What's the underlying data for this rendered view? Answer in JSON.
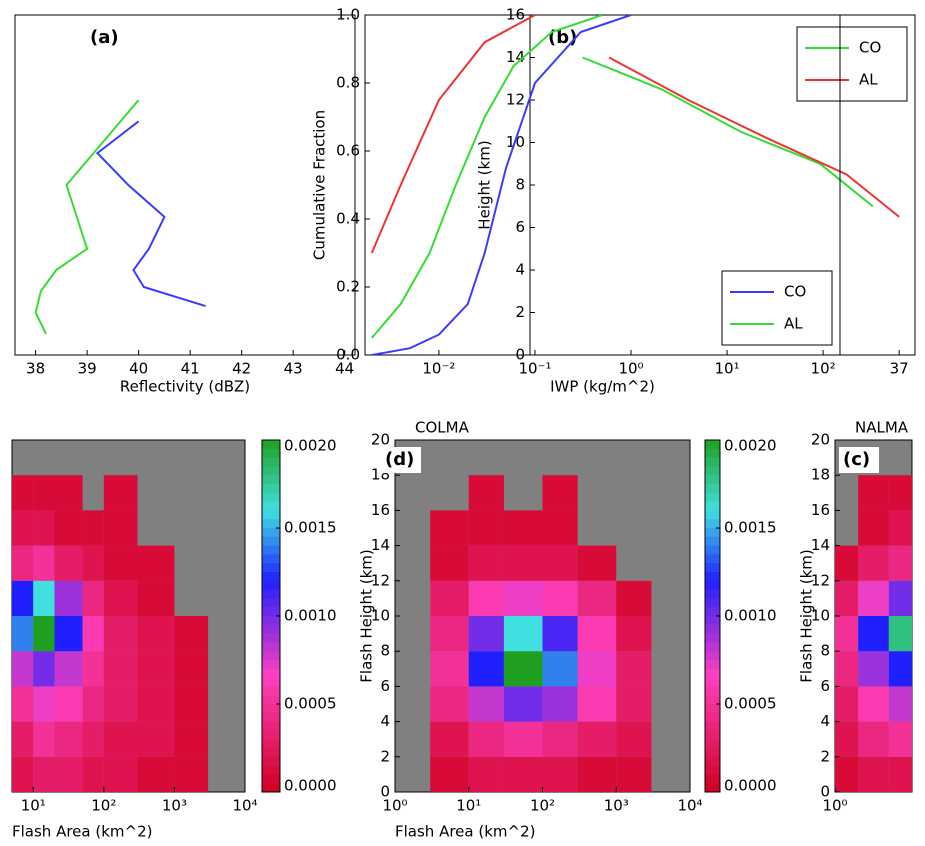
{
  "chart_data": [
    {
      "type": "line",
      "label": "(a)",
      "xlabel": "Reflectivity (dBZ)",
      "xlim": [
        37.6,
        44.2
      ],
      "xticks": [
        38,
        39,
        40,
        41,
        42,
        43,
        44
      ],
      "ylim": [
        0,
        16
      ],
      "series": [
        {
          "color": "#3b3bff",
          "x": [
            41.3,
            40.1,
            39.9,
            40.2,
            40.5,
            39.8,
            39.2,
            40.0
          ],
          "values": [
            2.3,
            3.2,
            4.0,
            5.0,
            6.5,
            8.0,
            9.5,
            11.0
          ]
        },
        {
          "color": "#33dd33",
          "x": [
            38.2,
            38.0,
            38.1,
            38.4,
            39.0,
            38.8,
            38.6,
            39.3,
            40.0
          ],
          "values": [
            1,
            2,
            3,
            4,
            5,
            6.5,
            8,
            10,
            12
          ]
        }
      ]
    },
    {
      "type": "line",
      "label": "(b)",
      "ylabel": "Height (km)",
      "xlim": [
        30,
        37.3
      ],
      "xticks": [
        37
      ],
      "ylim": [
        0,
        16
      ],
      "yticks": [
        0,
        2,
        4,
        6,
        8,
        10,
        12,
        14,
        16
      ],
      "legend": "upper right",
      "series": [
        {
          "name": "CO",
          "color": "#33dd33",
          "x": [
            31,
            32.5,
            34,
            35.5,
            36.5
          ],
          "values": [
            14,
            12.5,
            10.5,
            9,
            7
          ]
        },
        {
          "name": "AL",
          "color": "#ee3333",
          "x": [
            31.5,
            33,
            34.5,
            36,
            37
          ],
          "values": [
            14,
            12,
            10.2,
            8.5,
            6.5
          ]
        }
      ]
    },
    {
      "type": "line",
      "xlabel": "IWP (kg/m^2)",
      "ylabel": "Cumulative Fraction",
      "xlog": true,
      "xlim": [
        0.0017,
        150
      ],
      "xticks": [
        {
          "value": 0.01,
          "label": "10⁻²"
        },
        {
          "value": 0.1,
          "label": "10⁻¹"
        },
        {
          "value": 1,
          "label": "10⁰"
        },
        {
          "value": 10,
          "label": "10¹"
        },
        {
          "value": 100,
          "label": "10²"
        }
      ],
      "ylim": [
        0,
        1
      ],
      "yticks": [
        {
          "value": 0,
          "label": "0.0"
        },
        0.2,
        0.4,
        0.6,
        0.8,
        {
          "value": 1,
          "label": "1.0"
        }
      ],
      "legend": "lower right",
      "series": [
        {
          "name": "CO",
          "color": "#3b3bff",
          "x": [
            0.002,
            0.005,
            0.01,
            0.02,
            0.03,
            0.05,
            0.1,
            0.3,
            1
          ],
          "values": [
            0,
            0.02,
            0.06,
            0.15,
            0.3,
            0.55,
            0.8,
            0.95,
            1.0
          ]
        },
        {
          "name": "AL",
          "color": "#33dd33",
          "x": [
            0.002,
            0.004,
            0.008,
            0.015,
            0.03,
            0.06,
            0.15,
            0.5
          ],
          "values": [
            0.05,
            0.15,
            0.3,
            0.5,
            0.7,
            0.85,
            0.95,
            1.0
          ]
        },
        {
          "color": "#ee3333",
          "x": [
            0.002,
            0.004,
            0.01,
            0.03,
            0.1
          ],
          "values": [
            0.3,
            0.5,
            0.75,
            0.92,
            1.0
          ]
        }
      ]
    },
    {
      "type": "heatmap",
      "xlabel": "Flash Area (km^2)",
      "xlog": true,
      "xlim": [
        5,
        10000
      ],
      "xticks": [
        {
          "value": 10,
          "label": "10¹"
        },
        {
          "value": 100,
          "label": "10²"
        },
        {
          "value": 1000,
          "label": "10³"
        },
        {
          "value": 10000,
          "label": "10⁴"
        }
      ],
      "ylim": [
        0,
        20
      ],
      "xbins": [
        5,
        10,
        20,
        50,
        100,
        300,
        1000,
        3000,
        10000
      ],
      "ybins": [
        0,
        2,
        4,
        6,
        8,
        10,
        12,
        14,
        16,
        18,
        20
      ],
      "colorbar": {
        "lim": [
          0,
          0.002
        ],
        "ticks": [
          {
            "value": 0,
            "label": "0.0000"
          },
          0.0005,
          {
            "value": 0.001,
            "label": "0.0010"
          },
          0.0015,
          {
            "value": 0.002,
            "label": "0.0020"
          }
        ]
      },
      "z": [
        [
          0.0002,
          0.0003,
          0.0003,
          0.0002,
          0.0002,
          0.0001,
          0.0001,
          0
        ],
        [
          0.0003,
          0.0005,
          0.0004,
          0.0003,
          0.0002,
          0.0002,
          0.0001,
          0
        ],
        [
          0.0005,
          0.0007,
          0.0006,
          0.0004,
          0.0003,
          0.0002,
          0.0001,
          0
        ],
        [
          0.0008,
          0.001,
          0.0008,
          0.0005,
          0.0003,
          0.0002,
          0.0001,
          0
        ],
        [
          0.0014,
          0.002,
          0.0012,
          0.0006,
          0.0003,
          0.0002,
          0.0001,
          0
        ],
        [
          0.0012,
          0.0016,
          0.0009,
          0.0004,
          0.0002,
          0.0001,
          0,
          0
        ],
        [
          0.0004,
          0.0005,
          0.0003,
          0.0002,
          0.0001,
          0.0001,
          0,
          0
        ],
        [
          0.0002,
          0.0002,
          0.0001,
          0.0001,
          0.0001,
          0,
          0,
          0
        ],
        [
          0.0001,
          0.0001,
          0.0001,
          0,
          0.0001,
          0,
          0,
          0
        ],
        [
          0,
          0,
          0,
          0,
          0,
          0,
          0,
          0
        ]
      ]
    },
    {
      "type": "heatmap",
      "title": "COLMA",
      "label": "(d)",
      "xlabel": "Flash Area (km^2)",
      "ylabel": "Flash Height (km)",
      "xlog": true,
      "xlim": [
        1,
        10000
      ],
      "xticks": [
        {
          "value": 1,
          "label": "10⁰"
        },
        {
          "value": 10,
          "label": "10¹"
        },
        {
          "value": 100,
          "label": "10²"
        },
        {
          "value": 1000,
          "label": "10³"
        },
        {
          "value": 10000,
          "label": "10⁴"
        }
      ],
      "ylim": [
        0,
        20
      ],
      "yticks": [
        0,
        2,
        4,
        6,
        8,
        10,
        12,
        14,
        16,
        18,
        20
      ],
      "xbins": [
        1,
        3,
        10,
        30,
        100,
        300,
        1000,
        3000,
        10000
      ],
      "ybins": [
        0,
        2,
        4,
        6,
        8,
        10,
        12,
        14,
        16,
        18,
        20
      ],
      "colorbar": {
        "lim": [
          0,
          0.002
        ],
        "ticks": [
          {
            "value": 0,
            "label": "0.0000"
          },
          0.0005,
          {
            "value": 0.001,
            "label": "0.0010"
          },
          0.0015,
          {
            "value": 0.002,
            "label": "0.0020"
          }
        ]
      },
      "z": [
        [
          0,
          0.0001,
          0.0002,
          0.0002,
          0.0002,
          0.0001,
          0.0001,
          0
        ],
        [
          0,
          0.0002,
          0.0004,
          0.0005,
          0.0004,
          0.0003,
          0.0002,
          0
        ],
        [
          0,
          0.0004,
          0.0008,
          0.001,
          0.0009,
          0.0006,
          0.0003,
          0
        ],
        [
          0,
          0.0005,
          0.0012,
          0.002,
          0.0014,
          0.0007,
          0.0003,
          0
        ],
        [
          0,
          0.0004,
          0.001,
          0.0016,
          0.0011,
          0.0006,
          0.0002,
          0
        ],
        [
          0,
          0.0003,
          0.0006,
          0.0007,
          0.0006,
          0.0004,
          0.0001,
          0
        ],
        [
          0,
          0.0001,
          0.0002,
          0.0002,
          0.0002,
          0.0001,
          0,
          0
        ],
        [
          0,
          0.0001,
          0.0001,
          0.0001,
          0.0001,
          0,
          0,
          0
        ],
        [
          0,
          0,
          0.0001,
          0,
          0.0001,
          0,
          0,
          0
        ],
        [
          0,
          0,
          0,
          0,
          0,
          0,
          0,
          0
        ]
      ]
    },
    {
      "type": "heatmap",
      "title": "NALMA",
      "label": "(c)",
      "ylabel": "Flash Height (km)",
      "xlog": true,
      "xlim": [
        1,
        10
      ],
      "xticks": [
        {
          "value": 1,
          "label": "10⁰"
        }
      ],
      "ylim": [
        0,
        20
      ],
      "yticks": [
        0,
        2,
        4,
        6,
        8,
        10,
        12,
        14,
        16,
        18,
        20
      ],
      "xbins": [
        1,
        2,
        5,
        10
      ],
      "ybins": [
        0,
        2,
        4,
        6,
        8,
        10,
        12,
        14,
        16,
        18,
        20
      ],
      "z": [
        [
          0.0001,
          0.0002,
          0.0002
        ],
        [
          0.0002,
          0.0004,
          0.0005
        ],
        [
          0.0003,
          0.0006,
          0.0008
        ],
        [
          0.0004,
          0.0009,
          0.0012
        ],
        [
          0.0005,
          0.0012,
          0.0018
        ],
        [
          0.0003,
          0.0007,
          0.001
        ],
        [
          0.0001,
          0.0003,
          0.0004
        ],
        [
          0,
          0.0001,
          0.0002
        ],
        [
          0,
          0.0001,
          0.0001
        ],
        [
          0,
          0,
          0
        ]
      ]
    }
  ]
}
